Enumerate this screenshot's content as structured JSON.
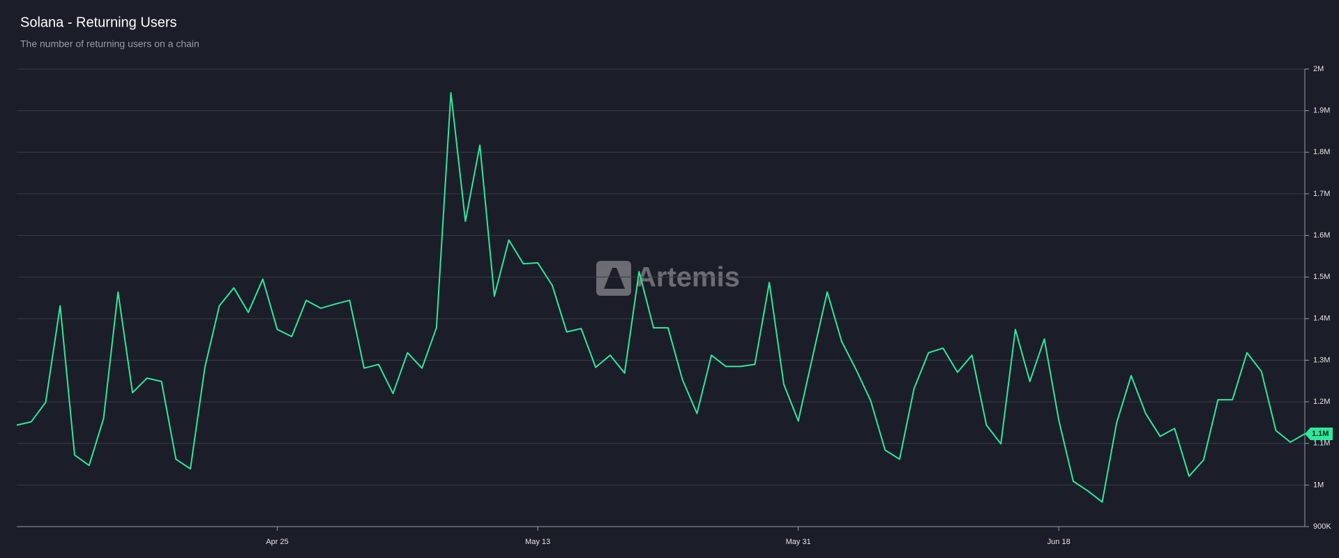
{
  "chart_data": {
    "type": "line",
    "title": "Solana - Returning Users",
    "subtitle": "The number of returning users on a chain",
    "watermark": "Artemis",
    "categories": [
      null,
      null,
      null,
      null,
      null,
      null,
      null,
      null,
      null,
      null,
      null,
      null,
      null,
      null,
      null,
      null,
      null,
      null,
      "Apr 25",
      null,
      null,
      null,
      null,
      null,
      null,
      null,
      null,
      null,
      null,
      null,
      null,
      null,
      null,
      null,
      null,
      null,
      "May 13",
      null,
      null,
      null,
      null,
      null,
      null,
      null,
      null,
      null,
      null,
      null,
      null,
      null,
      null,
      null,
      null,
      null,
      "May 31",
      null,
      null,
      null,
      null,
      null,
      null,
      null,
      null,
      null,
      null,
      null,
      null,
      null,
      null,
      null,
      null,
      null,
      "Jun 18",
      null,
      null,
      null,
      null,
      null,
      null,
      null,
      null,
      null,
      null,
      null,
      null,
      null,
      null,
      null,
      null,
      null
    ],
    "series": [
      {
        "name": "Returning Users",
        "color": "#2ee89c",
        "values": [
          1144000,
          1152000,
          1199000,
          1431000,
          1072000,
          1047000,
          1160000,
          1464000,
          1222000,
          1257000,
          1249000,
          1062000,
          1039000,
          1283000,
          1431000,
          1474000,
          1415000,
          1495000,
          1374000,
          1357000,
          1444000,
          1425000,
          1435000,
          1444000,
          1281000,
          1290000,
          1220000,
          1318000,
          1281000,
          1378000,
          1943000,
          1634000,
          1817000,
          1454000,
          1589000,
          1532000,
          1534000,
          1480000,
          1368000,
          1376000,
          1283000,
          1312000,
          1269000,
          1513000,
          1378000,
          1378000,
          1253000,
          1172000,
          1312000,
          1285000,
          1285000,
          1290000,
          1487000,
          1242000,
          1154000,
          1310000,
          1464000,
          1345000,
          1277000,
          1203000,
          1084000,
          1062000,
          1232000,
          1318000,
          1329000,
          1271000,
          1312000,
          1144000,
          1099000,
          1374000,
          1249000,
          1351000,
          1156000,
          1009000,
          986000,
          959000,
          1150000,
          1263000,
          1172000,
          1117000,
          1136000,
          1021000,
          1060000,
          1205000,
          1205000,
          1318000,
          1273000,
          1131000,
          1103000,
          1123000
        ],
        "value_labels": [
          null,
          null,
          null,
          null,
          null,
          null,
          null,
          null,
          null,
          null,
          null,
          null,
          null,
          null,
          null,
          null,
          null,
          null,
          null,
          null,
          null,
          null,
          null,
          null,
          null,
          null,
          null,
          null,
          null,
          null,
          null,
          null,
          null,
          null,
          null,
          null,
          null,
          null,
          null,
          null,
          null,
          null,
          null,
          null,
          null,
          null,
          null,
          null,
          null,
          null,
          null,
          null,
          null,
          null,
          null,
          null,
          null,
          null,
          null,
          null,
          null,
          null,
          null,
          null,
          null,
          null,
          null,
          null,
          null,
          null,
          null,
          null,
          null,
          null,
          null,
          null,
          null,
          null,
          null,
          null,
          null,
          null,
          null,
          null,
          null,
          null,
          null,
          null,
          null,
          "1.1M"
        ]
      }
    ],
    "ylim": [
      900000,
      2000000
    ],
    "yticks": [
      {
        "value": 900000,
        "label": "900K"
      },
      {
        "value": 1000000,
        "label": "1M"
      },
      {
        "value": 1100000,
        "label": "1.1M"
      },
      {
        "value": 1200000,
        "label": "1.2M"
      },
      {
        "value": 1300000,
        "label": "1.3M"
      },
      {
        "value": 1400000,
        "label": "1.4M"
      },
      {
        "value": 1500000,
        "label": "1.5M"
      },
      {
        "value": 1600000,
        "label": "1.6M"
      },
      {
        "value": 1700000,
        "label": "1.7M"
      },
      {
        "value": 1800000,
        "label": "1.8M"
      },
      {
        "value": 1900000,
        "label": "1.9M"
      },
      {
        "value": 2000000,
        "label": "2M"
      }
    ],
    "grid": true
  }
}
